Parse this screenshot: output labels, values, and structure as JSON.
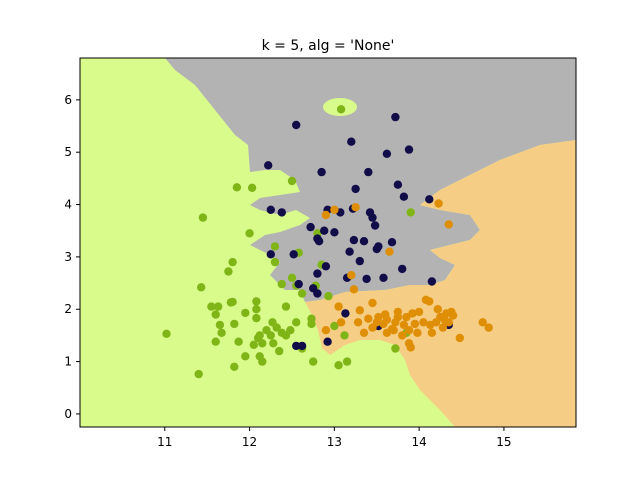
{
  "chart_data": {
    "type": "scatter",
    "title": "k = 5, alg = 'None'",
    "xlabel": "",
    "ylabel": "",
    "xlim": [
      10.0,
      15.85
    ],
    "ylim": [
      -0.25,
      6.8
    ],
    "xticks": [
      11,
      12,
      13,
      14,
      15
    ],
    "yticks": [
      0,
      1,
      2,
      3,
      4,
      5,
      6
    ],
    "grid": false,
    "legend": "none",
    "region_colors": {
      "green": "#d9fb8c",
      "gray": "#b3b3b3",
      "orange": "#f6cd85"
    },
    "series": [
      {
        "color": "#80b518",
        "points": [
          [
            11.02,
            1.53
          ],
          [
            11.4,
            0.76
          ],
          [
            11.45,
            3.75
          ],
          [
            11.43,
            2.42
          ],
          [
            11.55,
            2.05
          ],
          [
            11.6,
            1.9
          ],
          [
            11.6,
            1.38
          ],
          [
            11.63,
            2.05
          ],
          [
            11.65,
            1.7
          ],
          [
            11.67,
            1.55
          ],
          [
            11.75,
            2.72
          ],
          [
            11.78,
            2.13
          ],
          [
            11.8,
            2.14
          ],
          [
            11.82,
            1.72
          ],
          [
            11.82,
            0.9
          ],
          [
            11.8,
            2.9
          ],
          [
            11.85,
            4.33
          ],
          [
            11.87,
            1.38
          ],
          [
            11.95,
            1.93
          ],
          [
            11.95,
            1.1
          ],
          [
            12.0,
            3.45
          ],
          [
            12.03,
            4.32
          ],
          [
            12.05,
            1.32
          ],
          [
            12.08,
            2.15
          ],
          [
            12.08,
            2.0
          ],
          [
            12.1,
            1.45
          ],
          [
            12.08,
            1.83
          ],
          [
            12.12,
            1.5
          ],
          [
            12.12,
            1.1
          ],
          [
            12.15,
            1.35
          ],
          [
            12.15,
            1.0
          ],
          [
            12.2,
            1.6
          ],
          [
            12.25,
            1.5
          ],
          [
            12.27,
            1.75
          ],
          [
            12.28,
            1.35
          ],
          [
            12.3,
            3.2
          ],
          [
            12.3,
            2.9
          ],
          [
            12.32,
            1.65
          ],
          [
            12.35,
            1.2
          ],
          [
            12.38,
            1.55
          ],
          [
            12.38,
            2.48
          ],
          [
            12.43,
            2.05
          ],
          [
            12.43,
            1.5
          ],
          [
            12.48,
            1.6
          ],
          [
            12.5,
            4.45
          ],
          [
            12.5,
            2.6
          ],
          [
            12.55,
            1.75
          ],
          [
            12.58,
            3.08
          ],
          [
            12.62,
            1.25
          ],
          [
            12.73,
            1.82
          ],
          [
            12.73,
            1.72
          ],
          [
            12.75,
            1.0
          ],
          [
            12.78,
            2.45
          ],
          [
            12.8,
            3.45
          ],
          [
            12.85,
            2.85
          ],
          [
            13.0,
            1.68
          ],
          [
            13.05,
            0.93
          ],
          [
            13.08,
            5.82
          ],
          [
            13.12,
            1.5
          ],
          [
            13.15,
            1.0
          ],
          [
            13.85,
            1.55
          ],
          [
            13.9,
            3.85
          ],
          [
            12.55,
            2.45
          ],
          [
            12.62,
            2.3
          ],
          [
            13.72,
            1.25
          ],
          [
            12.93,
            2.25
          ]
        ]
      },
      {
        "color": "#110d48",
        "points": [
          [
            12.22,
            4.75
          ],
          [
            12.25,
            3.05
          ],
          [
            12.25,
            3.9
          ],
          [
            12.38,
            3.85
          ],
          [
            12.52,
            3.05
          ],
          [
            12.55,
            5.52
          ],
          [
            12.58,
            2.48
          ],
          [
            12.62,
            1.3
          ],
          [
            12.72,
            3.57
          ],
          [
            12.75,
            2.4
          ],
          [
            12.8,
            2.68
          ],
          [
            12.8,
            2.3
          ],
          [
            12.8,
            3.35
          ],
          [
            12.82,
            3.3
          ],
          [
            12.85,
            4.62
          ],
          [
            12.88,
            3.5
          ],
          [
            12.9,
            2.82
          ],
          [
            12.92,
            3.9
          ],
          [
            13.0,
            3.47
          ],
          [
            13.07,
            3.85
          ],
          [
            13.13,
            1.92
          ],
          [
            13.15,
            2.6
          ],
          [
            13.18,
            3.1
          ],
          [
            13.2,
            5.2
          ],
          [
            13.22,
            3.92
          ],
          [
            13.23,
            3.32
          ],
          [
            13.25,
            4.3
          ],
          [
            13.3,
            2.92
          ],
          [
            13.35,
            3.3
          ],
          [
            13.38,
            2.58
          ],
          [
            13.4,
            4.62
          ],
          [
            13.42,
            3.85
          ],
          [
            13.45,
            3.75
          ],
          [
            13.48,
            3.6
          ],
          [
            13.5,
            3.15
          ],
          [
            13.52,
            3.2
          ],
          [
            13.52,
            1.68
          ],
          [
            13.58,
            2.6
          ],
          [
            13.62,
            4.97
          ],
          [
            13.68,
            3.28
          ],
          [
            13.72,
            5.67
          ],
          [
            13.75,
            4.38
          ],
          [
            13.8,
            2.77
          ],
          [
            13.82,
            4.15
          ],
          [
            13.88,
            5.05
          ],
          [
            14.12,
            4.1
          ],
          [
            14.15,
            2.53
          ],
          [
            14.35,
            1.7
          ],
          [
            12.92,
            1.38
          ],
          [
            12.55,
            1.3
          ]
        ]
      },
      {
        "color": "#df8f06",
        "points": [
          [
            12.9,
            3.8
          ],
          [
            12.9,
            1.6
          ],
          [
            13.0,
            3.9
          ],
          [
            13.05,
            2.05
          ],
          [
            13.08,
            1.75
          ],
          [
            13.2,
            2.65
          ],
          [
            13.25,
            3.95
          ],
          [
            13.28,
            1.75
          ],
          [
            13.3,
            1.98
          ],
          [
            13.35,
            1.55
          ],
          [
            13.4,
            1.82
          ],
          [
            13.45,
            1.65
          ],
          [
            13.5,
            1.75
          ],
          [
            13.52,
            1.85
          ],
          [
            13.58,
            1.72
          ],
          [
            13.6,
            1.9
          ],
          [
            13.62,
            1.55
          ],
          [
            13.65,
            3.1
          ],
          [
            13.68,
            1.62
          ],
          [
            13.7,
            1.6
          ],
          [
            13.72,
            1.75
          ],
          [
            13.75,
            1.85
          ],
          [
            13.75,
            1.95
          ],
          [
            13.8,
            1.5
          ],
          [
            13.82,
            1.7
          ],
          [
            13.85,
            1.85
          ],
          [
            13.88,
            1.6
          ],
          [
            13.88,
            1.35
          ],
          [
            13.92,
            1.92
          ],
          [
            13.95,
            1.72
          ],
          [
            13.98,
            1.55
          ],
          [
            14.0,
            1.95
          ],
          [
            14.05,
            1.75
          ],
          [
            14.08,
            2.18
          ],
          [
            14.12,
            2.15
          ],
          [
            14.13,
            1.7
          ],
          [
            14.15,
            1.55
          ],
          [
            14.2,
            1.75
          ],
          [
            14.22,
            2.0
          ],
          [
            14.25,
            1.85
          ],
          [
            14.28,
            1.65
          ],
          [
            14.3,
            1.8
          ],
          [
            14.32,
            1.92
          ],
          [
            14.35,
            1.75
          ],
          [
            14.38,
            1.95
          ],
          [
            14.35,
            3.62
          ],
          [
            14.23,
            4.02
          ],
          [
            14.48,
            1.45
          ],
          [
            14.75,
            1.75
          ],
          [
            14.82,
            1.65
          ],
          [
            13.23,
            2.38
          ],
          [
            13.45,
            2.12
          ],
          [
            13.62,
            1.8
          ],
          [
            13.9,
            1.27
          ],
          [
            14.4,
            1.88
          ]
        ]
      }
    ]
  }
}
